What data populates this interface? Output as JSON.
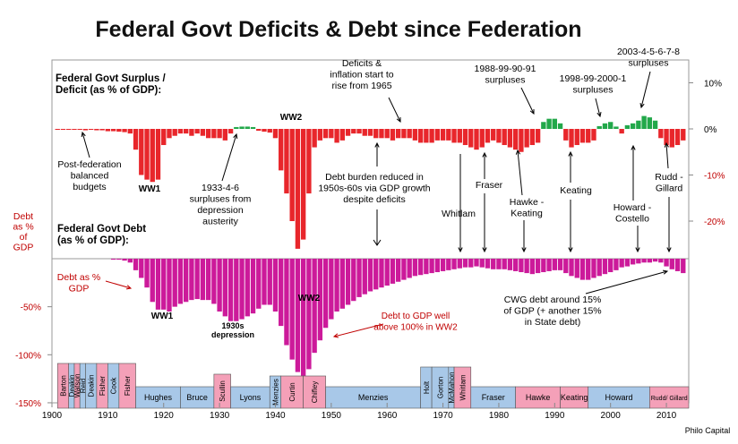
{
  "chart_data": {
    "type": "bar",
    "title": "Federal Govt Deficits & Debt since Federation",
    "x_ticks": [
      1900,
      1910,
      1920,
      1930,
      1940,
      1950,
      1960,
      1970,
      1980,
      1990,
      2000,
      2010
    ],
    "x_range": [
      1900,
      2014
    ],
    "panels": {
      "surplus_deficit": {
        "label": "Federal Govt Surplus / Deficit (as % of GDP):",
        "y_ticks": [
          "10%",
          "0%",
          "-10%",
          "-20%"
        ],
        "y_tick_values": [
          10,
          0,
          -10,
          -20
        ],
        "ylim": [
          -26,
          15
        ],
        "series": [
          {
            "name": "Deficit",
            "color": "#e8262b",
            "x": [
              1901,
              1902,
              1903,
              1904,
              1905,
              1906,
              1907,
              1908,
              1909,
              1910,
              1911,
              1912,
              1913,
              1914,
              1915,
              1916,
              1917,
              1918,
              1919,
              1920,
              1921,
              1922,
              1923,
              1924,
              1925,
              1926,
              1927,
              1928,
              1929,
              1930,
              1931,
              1932,
              1937,
              1938,
              1939,
              1940,
              1941,
              1942,
              1943,
              1944,
              1945,
              1946,
              1947,
              1948,
              1949,
              1950,
              1951,
              1952,
              1953,
              1954,
              1955,
              1956,
              1957,
              1958,
              1959,
              1960,
              1961,
              1962,
              1963,
              1964,
              1965,
              1966,
              1967,
              1968,
              1969,
              1970,
              1971,
              1972,
              1973,
              1974,
              1975,
              1976,
              1977,
              1978,
              1979,
              1980,
              1981,
              1982,
              1983,
              1984,
              1985,
              1986,
              1987,
              1992,
              1993,
              1994,
              1995,
              1996,
              1997,
              2002,
              2009,
              2010,
              2011,
              2012,
              2013
            ],
            "values": [
              -0.2,
              -0.2,
              -0.2,
              -0.2,
              -0.2,
              -0.3,
              -0.2,
              -0.3,
              -0.3,
              -0.5,
              -0.5,
              -0.6,
              -0.7,
              -1,
              -4.5,
              -10,
              -11,
              -11.5,
              -11,
              -3.5,
              -2,
              -1.5,
              -1,
              -1,
              -1.5,
              -1,
              -1.5,
              -2,
              -2,
              -2,
              -2.5,
              -1,
              -0.4,
              -0.6,
              -0.8,
              -2,
              -9,
              -14,
              -20,
              -26,
              -24,
              -14,
              -4,
              -2.5,
              -2,
              -2,
              -3,
              -2.5,
              -1.5,
              -1,
              -1,
              -1.5,
              -1.5,
              -2,
              -2,
              -2,
              -2.5,
              -2,
              -2,
              -2,
              -2.5,
              -3,
              -3,
              -3,
              -2.5,
              -2.5,
              -2.5,
              -3,
              -3,
              -3.5,
              -4,
              -4.5,
              -4,
              -3,
              -2.5,
              -3,
              -3.5,
              -4,
              -4.5,
              -5,
              -4,
              -3.5,
              -3,
              -2.5,
              -4,
              -3.5,
              -3,
              -3,
              -2.5,
              -1,
              -2,
              -3.5,
              -4,
              -3.5,
              -2.5
            ]
          },
          {
            "name": "Surplus",
            "color": "#22a84a",
            "x": [
              1933,
              1934,
              1935,
              1936,
              1988,
              1989,
              1990,
              1991,
              1998,
              1999,
              2000,
              2001,
              2003,
              2004,
              2005,
              2006,
              2007,
              2008
            ],
            "values": [
              0.4,
              0.5,
              0.5,
              0.4,
              1.5,
              2.2,
              2.2,
              1.2,
              0.6,
              1.2,
              1.5,
              0.5,
              0.8,
              1.2,
              1.8,
              2.8,
              2.5,
              1.8
            ]
          }
        ]
      },
      "debt": {
        "label": "Federal Govt Debt (as % of GDP):",
        "y_axis_label": "Debt as % of GDP",
        "y_ticks": [
          "-50%",
          "-100%",
          "-150%"
        ],
        "y_tick_values": [
          -50,
          -100,
          -150
        ],
        "ylim": [
          -150,
          0
        ],
        "series": [
          {
            "name": "Debt as % GDP",
            "color": "#cc1a9a",
            "x": [
              1901,
              1902,
              1903,
              1904,
              1905,
              1906,
              1907,
              1908,
              1909,
              1910,
              1911,
              1912,
              1913,
              1914,
              1915,
              1916,
              1917,
              1918,
              1919,
              1920,
              1921,
              1922,
              1923,
              1924,
              1925,
              1926,
              1927,
              1928,
              1929,
              1930,
              1931,
              1932,
              1933,
              1934,
              1935,
              1936,
              1937,
              1938,
              1939,
              1940,
              1941,
              1942,
              1943,
              1944,
              1945,
              1946,
              1947,
              1948,
              1949,
              1950,
              1951,
              1952,
              1953,
              1954,
              1955,
              1956,
              1957,
              1958,
              1959,
              1960,
              1961,
              1962,
              1963,
              1964,
              1965,
              1966,
              1967,
              1968,
              1969,
              1970,
              1971,
              1972,
              1973,
              1974,
              1975,
              1976,
              1977,
              1978,
              1979,
              1980,
              1981,
              1982,
              1983,
              1984,
              1985,
              1986,
              1987,
              1988,
              1989,
              1990,
              1991,
              1992,
              1993,
              1994,
              1995,
              1996,
              1997,
              1998,
              1999,
              2000,
              2001,
              2002,
              2003,
              2004,
              2005,
              2006,
              2007,
              2008,
              2009,
              2010,
              2011,
              2012,
              2013
            ],
            "values": [
              0,
              0,
              0,
              0,
              0,
              0,
              0,
              0,
              0,
              0,
              -1,
              -1,
              -2,
              -4,
              -12,
              -20,
              -30,
              -45,
              -53,
              -53,
              -55,
              -50,
              -47,
              -45,
              -43,
              -42,
              -43,
              -43,
              -47,
              -55,
              -60,
              -65,
              -65,
              -63,
              -60,
              -57,
              -52,
              -48,
              -48,
              -55,
              -70,
              -90,
              -105,
              -118,
              -122,
              -115,
              -98,
              -85,
              -72,
              -63,
              -55,
              -52,
              -48,
              -44,
              -40,
              -37,
              -34,
              -32,
              -30,
              -28,
              -26,
              -24,
              -22,
              -20,
              -18,
              -17,
              -16,
              -15,
              -14,
              -13,
              -12,
              -11,
              -10,
              -9,
              -9,
              -8,
              -9,
              -10,
              -11,
              -11,
              -11,
              -12,
              -13,
              -14,
              -15,
              -16,
              -15,
              -14,
              -13,
              -12,
              -12,
              -15,
              -18,
              -20,
              -22,
              -22,
              -20,
              -18,
              -16,
              -14,
              -12,
              -9,
              -8,
              -6,
              -5,
              -4,
              -4,
              -3,
              -4,
              -8,
              -11,
              -13,
              -15
            ]
          }
        ]
      }
    },
    "annotations": {
      "post_federation": "Post-federation balanced budgets",
      "ww1_top": "WW1",
      "ww2_top": "WW2",
      "surpluses_1933": "1933-4-6 surpluses from depression austerity",
      "deficits_1965": "Deficits & inflation start to rise from 1965",
      "debt_burden": "Debt burden reduced in 1950s-60s via GDP growth despite deficits",
      "surpluses_1988": "1988-99-90-91 surpluses",
      "surpluses_1998": "1998-99-2000-1 surpluses",
      "surpluses_2003": "2003-4-5-6-7-8 surpluses",
      "whitlam": "Whitlam",
      "fraser": "Fraser",
      "hawke_keating": "Hawke - Keating",
      "keating": "Keating",
      "howard_costello": "Howard - Costello",
      "rudd_gillard": "Rudd - Gillard",
      "debt_label_red": "Debt as % GDP",
      "ww1_bottom": "WW1",
      "depression_1930s": "1930s depression",
      "ww2_bottom": "WW2",
      "debt_ww2": "Debt to GDP well above 100% in WW2",
      "cwg_debt": "CWG debt around 15% of GDP (+ another 15% in State debt)",
      "source": "Philo Capital"
    },
    "government_timeline": [
      {
        "name": "Barton",
        "start": 1901,
        "end": 1903,
        "party": "pink",
        "vertical": true
      },
      {
        "name": "Deakin",
        "start": 1903,
        "end": 1904,
        "party": "blue",
        "vertical": true
      },
      {
        "name": "Watson",
        "start": 1904,
        "end": 1905,
        "party": "pink",
        "vertical": true
      },
      {
        "name": "Reid",
        "start": 1905,
        "end": 1906,
        "party": "blue",
        "vertical": true
      },
      {
        "name": "Deakin",
        "start": 1906,
        "end": 1908,
        "party": "blue",
        "vertical": true
      },
      {
        "name": "Fisher",
        "start": 1908,
        "end": 1910,
        "party": "pink",
        "vertical": true
      },
      {
        "name": "Cook",
        "start": 1910,
        "end": 1912,
        "party": "blue",
        "vertical": true
      },
      {
        "name": "Fisher",
        "start": 1912,
        "end": 1915,
        "party": "pink",
        "vertical": true
      },
      {
        "name": "Hughes",
        "start": 1915,
        "end": 1923,
        "party": "blue",
        "vertical": false
      },
      {
        "name": "Bruce",
        "start": 1923,
        "end": 1929,
        "party": "blue",
        "vertical": false
      },
      {
        "name": "Scullin",
        "start": 1929,
        "end": 1932,
        "party": "pink",
        "vertical": true
      },
      {
        "name": "Lyons",
        "start": 1932,
        "end": 1939,
        "party": "blue",
        "vertical": false
      },
      {
        "name": "Menzies",
        "start": 1939,
        "end": 1941,
        "party": "blue",
        "vertical": true
      },
      {
        "name": "Curtin",
        "start": 1941,
        "end": 1945,
        "party": "pink",
        "vertical": true
      },
      {
        "name": "Chifley",
        "start": 1945,
        "end": 1949,
        "party": "pink",
        "vertical": true
      },
      {
        "name": "Menzies",
        "start": 1949,
        "end": 1966,
        "party": "blue",
        "vertical": false
      },
      {
        "name": "Holt",
        "start": 1966,
        "end": 1968,
        "party": "blue",
        "vertical": true
      },
      {
        "name": "Gorton",
        "start": 1968,
        "end": 1971,
        "party": "blue",
        "vertical": true
      },
      {
        "name": "McMahon",
        "start": 1971,
        "end": 1972,
        "party": "blue",
        "vertical": true
      },
      {
        "name": "Whitlam",
        "start": 1972,
        "end": 1975,
        "party": "pink",
        "vertical": true
      },
      {
        "name": "Fraser",
        "start": 1975,
        "end": 1983,
        "party": "blue",
        "vertical": false
      },
      {
        "name": "Hawke",
        "start": 1983,
        "end": 1991,
        "party": "pink",
        "vertical": false
      },
      {
        "name": "Keating",
        "start": 1991,
        "end": 1996,
        "party": "pink",
        "vertical": false
      },
      {
        "name": "Howard",
        "start": 1996,
        "end": 2007,
        "party": "blue",
        "vertical": false
      },
      {
        "name": "Rudd/ Gillard",
        "start": 2007,
        "end": 2014,
        "party": "pink",
        "vertical": false
      }
    ],
    "colors": {
      "deficit": "#e8262b",
      "surplus": "#22a84a",
      "debt": "#cc1a9a",
      "labor": "#f4a0b8",
      "coalition": "#a8c8e8"
    }
  }
}
